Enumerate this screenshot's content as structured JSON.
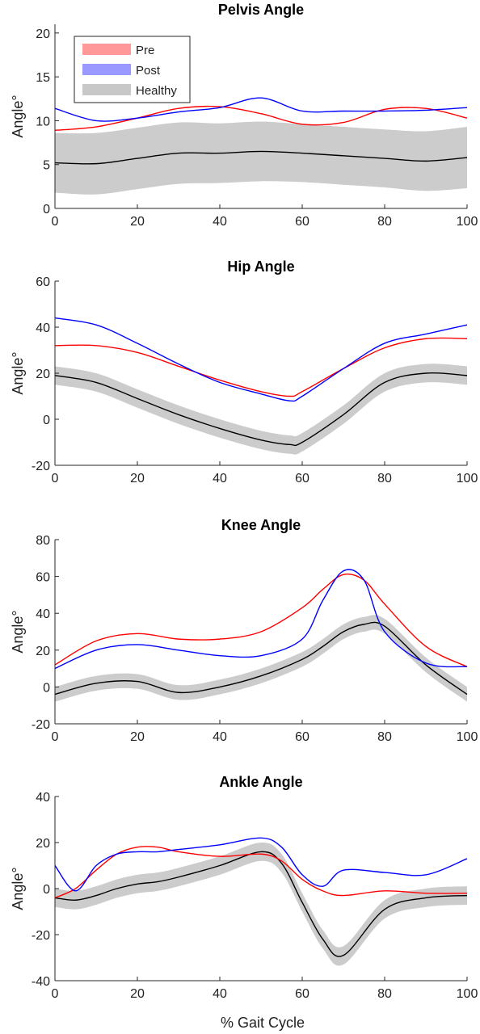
{
  "x_axis_label": "% Gait Cycle",
  "legend": {
    "entries": [
      {
        "label": "Pre",
        "color": "#ff9999"
      },
      {
        "label": "Post",
        "color": "#9999ff"
      },
      {
        "label": "Healthy",
        "color": "#c8c8c8"
      }
    ]
  },
  "colors": {
    "pre": "#ff0000",
    "post": "#0000ff",
    "healthy": "#000000",
    "band": "#cccccc"
  },
  "chart_data": [
    {
      "type": "line",
      "title": "Pelvis Angle",
      "ylabel": "Angle°",
      "xlim": [
        0,
        100
      ],
      "ylim": [
        0,
        21
      ],
      "yticks": [
        0,
        5,
        10,
        15,
        20
      ],
      "xticks": [
        0,
        20,
        40,
        60,
        80,
        100
      ],
      "x": [
        0,
        10,
        20,
        30,
        40,
        50,
        60,
        70,
        80,
        90,
        100
      ],
      "series": [
        {
          "name": "Pre",
          "values": [
            8.9,
            9.3,
            10.3,
            11.4,
            11.6,
            10.8,
            9.6,
            9.8,
            11.3,
            11.4,
            10.3
          ]
        },
        {
          "name": "Post",
          "values": [
            11.4,
            10.0,
            10.3,
            11.0,
            11.5,
            12.6,
            11.1,
            11.1,
            11.1,
            11.2,
            11.5
          ]
        },
        {
          "name": "Healthy",
          "values": [
            5.2,
            5.1,
            5.7,
            6.3,
            6.3,
            6.5,
            6.3,
            6.0,
            5.7,
            5.4,
            5.8
          ],
          "band_half_width": [
            3.4,
            3.5,
            3.5,
            3.5,
            3.4,
            3.4,
            3.3,
            3.3,
            3.3,
            3.4,
            3.5
          ]
        }
      ]
    },
    {
      "type": "line",
      "title": "Hip Angle",
      "ylabel": "Angle°",
      "xlim": [
        0,
        100
      ],
      "ylim": [
        -20,
        60
      ],
      "yticks": [
        -20,
        0,
        20,
        40,
        60
      ],
      "xticks": [
        0,
        20,
        40,
        60,
        80,
        100
      ],
      "x": [
        0,
        10,
        20,
        30,
        40,
        50,
        57,
        60,
        70,
        80,
        90,
        100
      ],
      "series": [
        {
          "name": "Pre",
          "values": [
            32,
            32,
            29,
            23,
            17,
            12,
            10,
            12,
            22,
            31,
            35,
            35
          ]
        },
        {
          "name": "Post",
          "values": [
            44,
            41,
            33,
            24,
            16,
            11,
            8,
            10,
            22,
            33,
            37,
            41
          ]
        },
        {
          "name": "Healthy",
          "values": [
            19,
            16,
            9,
            2,
            -4,
            -9,
            -11,
            -10,
            2,
            16,
            20,
            19
          ],
          "band_half_width": [
            4,
            4,
            4,
            4,
            4,
            4,
            4,
            4,
            4,
            4,
            4,
            4
          ]
        }
      ]
    },
    {
      "type": "line",
      "title": "Knee Angle",
      "ylabel": "Angle°",
      "xlim": [
        0,
        100
      ],
      "ylim": [
        -20,
        80
      ],
      "yticks": [
        -20,
        0,
        20,
        40,
        60,
        80
      ],
      "xticks": [
        0,
        20,
        40,
        60,
        80,
        100
      ],
      "x": [
        0,
        10,
        20,
        30,
        40,
        50,
        60,
        65,
        70,
        75,
        80,
        90,
        100
      ],
      "series": [
        {
          "name": "Pre",
          "values": [
            12,
            25,
            29,
            26,
            26,
            30,
            43,
            53,
            61,
            58,
            45,
            22,
            11
          ]
        },
        {
          "name": "Post",
          "values": [
            10,
            20,
            23,
            20,
            17,
            17,
            26,
            47,
            63,
            58,
            30,
            13,
            11
          ]
        },
        {
          "name": "Healthy",
          "values": [
            -4,
            2,
            3,
            -3,
            0,
            6,
            15,
            22,
            30,
            34,
            33,
            12,
            -4
          ],
          "band_half_width": [
            4,
            4,
            4,
            4,
            4,
            4,
            4,
            4,
            4,
            4,
            4,
            4,
            4
          ]
        }
      ]
    },
    {
      "type": "line",
      "title": "Ankle Angle",
      "ylabel": "Angle°",
      "xlim": [
        0,
        100
      ],
      "ylim": [
        -40,
        40
      ],
      "yticks": [
        -40,
        -20,
        0,
        20,
        40
      ],
      "xticks": [
        0,
        20,
        40,
        60,
        80,
        100
      ],
      "x": [
        0,
        5,
        10,
        15,
        20,
        25,
        30,
        40,
        50,
        55,
        60,
        65,
        70,
        80,
        90,
        100
      ],
      "series": [
        {
          "name": "Pre",
          "values": [
            -4,
            0,
            8,
            15,
            18,
            18,
            16,
            14,
            15,
            12,
            4,
            -1,
            -3,
            -1,
            -2,
            -2
          ]
        },
        {
          "name": "Post",
          "values": [
            10,
            -1,
            10,
            15,
            16,
            16,
            17,
            19,
            22,
            18,
            6,
            1,
            8,
            7,
            6,
            13
          ]
        },
        {
          "name": "Healthy",
          "values": [
            -4,
            -5,
            -3,
            0,
            2,
            3,
            5,
            10,
            16,
            11,
            -6,
            -22,
            -29,
            -9,
            -4,
            -3
          ],
          "band_half_width": [
            4,
            4,
            4,
            4,
            4,
            4,
            4,
            4,
            4,
            4,
            4,
            4,
            4,
            4,
            4,
            4
          ]
        }
      ]
    }
  ]
}
